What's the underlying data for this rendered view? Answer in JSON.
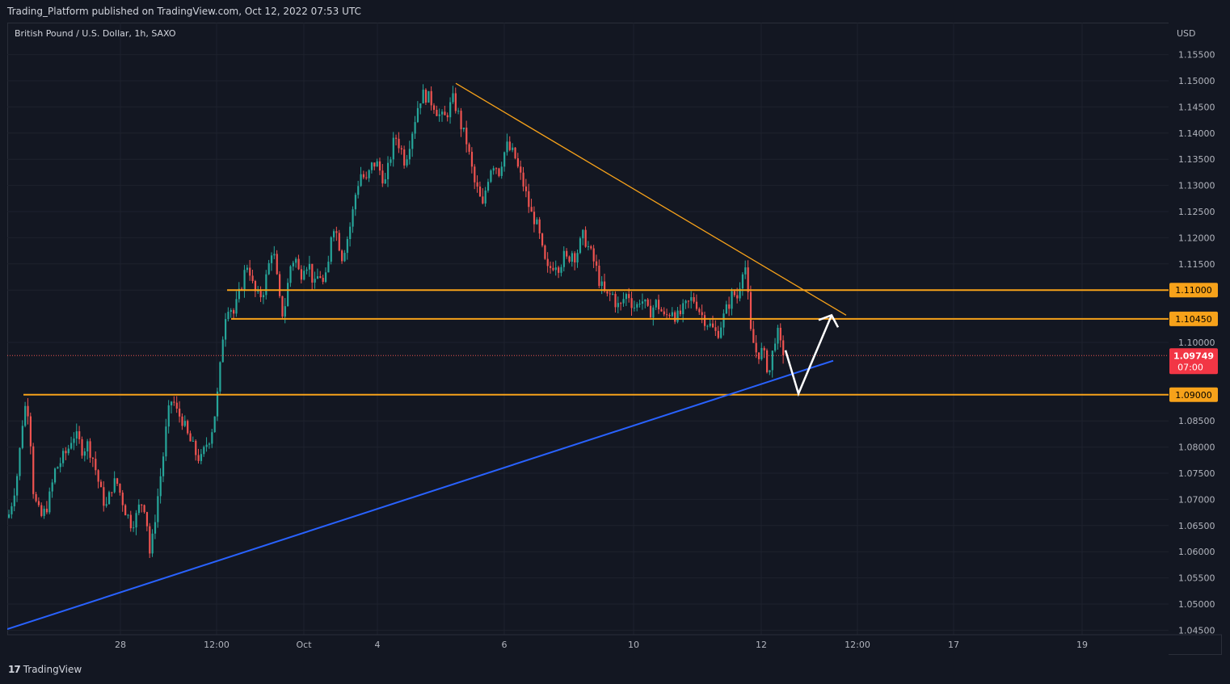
{
  "header": {
    "published": "Trading_Platform published on TradingView.com, Oct 12, 2022 07:53 UTC"
  },
  "footer": {
    "logo_mark": "17",
    "brand": "TradingView"
  },
  "chart_data": {
    "type": "candlestick",
    "title": "British Pound / U.S. Dollar, 1h, SAXO",
    "currency": "USD",
    "y_ticks": [
      "1.15500",
      "1.15000",
      "1.14500",
      "1.14000",
      "1.13500",
      "1.13000",
      "1.12500",
      "1.12000",
      "1.11500",
      "1.11000",
      "1.10000",
      "1.08500",
      "1.08000",
      "1.07500",
      "1.07000",
      "1.06500",
      "1.06000",
      "1.05500",
      "1.05000",
      "1.04500"
    ],
    "ylim": [
      1.043,
      1.159
    ],
    "x_ticks": [
      "28",
      "12:00",
      "Oct",
      "4",
      "6",
      "10",
      "12",
      "12:00",
      "17",
      "19"
    ],
    "price_path": [
      [
        0,
        1.0665
      ],
      [
        6,
        1.0705
      ],
      [
        12,
        1.0755
      ],
      [
        18,
        1.0852
      ],
      [
        23,
        1.0892
      ],
      [
        27,
        1.0835
      ],
      [
        31,
        1.072
      ],
      [
        36,
        1.068
      ],
      [
        42,
        1.0665
      ],
      [
        50,
        1.0695
      ],
      [
        58,
        1.0755
      ],
      [
        66,
        1.0775
      ],
      [
        74,
        1.0795
      ],
      [
        80,
        1.0825
      ],
      [
        86,
        1.0815
      ],
      [
        92,
        1.0795
      ],
      [
        98,
        1.0805
      ],
      [
        104,
        1.0785
      ],
      [
        110,
        1.0745
      ],
      [
        116,
        1.0705
      ],
      [
        122,
        1.0685
      ],
      [
        128,
        1.0725
      ],
      [
        134,
        1.0735
      ],
      [
        140,
        1.0705
      ],
      [
        146,
        1.0675
      ],
      [
        152,
        1.0655
      ],
      [
        158,
        1.0665
      ],
      [
        164,
        1.0695
      ],
      [
        170,
        1.0685
      ],
      [
        176,
        1.0585
      ],
      [
        180,
        1.0645
      ],
      [
        186,
        1.0715
      ],
      [
        192,
        1.0785
      ],
      [
        197,
        1.0855
      ],
      [
        203,
        1.0895
      ],
      [
        209,
        1.0865
      ],
      [
        215,
        1.0855
      ],
      [
        221,
        1.0825
      ],
      [
        227,
        1.0805
      ],
      [
        233,
        1.0785
      ],
      [
        239,
        1.0775
      ],
      [
        245,
        1.0805
      ],
      [
        251,
        1.0825
      ],
      [
        257,
        1.0875
      ],
      [
        261,
        1.0925
      ],
      [
        265,
        1.1005
      ],
      [
        269,
        1.1055
      ],
      [
        273,
        1.1075
      ],
      [
        279,
        1.1055
      ],
      [
        285,
        1.1085
      ],
      [
        291,
        1.1125
      ],
      [
        297,
        1.1155
      ],
      [
        303,
        1.1105
      ],
      [
        309,
        1.1085
      ],
      [
        315,
        1.1095
      ],
      [
        321,
        1.1135
      ],
      [
        327,
        1.1185
      ],
      [
        331,
        1.1145
      ],
      [
        335,
        1.1085
      ],
      [
        339,
        1.1055
      ],
      [
        343,
        1.1075
      ],
      [
        349,
        1.1145
      ],
      [
        355,
        1.1165
      ],
      [
        361,
        1.1125
      ],
      [
        367,
        1.1155
      ],
      [
        373,
        1.1145
      ],
      [
        379,
        1.1105
      ],
      [
        385,
        1.1135
      ],
      [
        391,
        1.1105
      ],
      [
        397,
        1.1155
      ],
      [
        401,
        1.1235
      ],
      [
        407,
        1.1205
      ],
      [
        413,
        1.1165
      ],
      [
        419,
        1.1195
      ],
      [
        425,
        1.1235
      ],
      [
        431,
        1.1295
      ],
      [
        437,
        1.1325
      ],
      [
        443,
        1.1305
      ],
      [
        449,
        1.1335
      ],
      [
        455,
        1.1345
      ],
      [
        461,
        1.1325
      ],
      [
        467,
        1.1305
      ],
      [
        473,
        1.1355
      ],
      [
        479,
        1.1395
      ],
      [
        485,
        1.1375
      ],
      [
        491,
        1.1345
      ],
      [
        497,
        1.1385
      ],
      [
        503,
        1.1425
      ],
      [
        509,
        1.1465
      ],
      [
        515,
        1.1475
      ],
      [
        521,
        1.1465
      ],
      [
        527,
        1.1455
      ],
      [
        533,
        1.1435
      ],
      [
        539,
        1.1425
      ],
      [
        545,
        1.1445
      ],
      [
        551,
        1.1465
      ],
      [
        557,
        1.1435
      ],
      [
        562,
        1.1405
      ],
      [
        567,
        1.1385
      ],
      [
        572,
        1.1345
      ],
      [
        577,
        1.1305
      ],
      [
        582,
        1.1285
      ],
      [
        587,
        1.1255
      ],
      [
        592,
        1.1305
      ],
      [
        597,
        1.1335
      ],
      [
        602,
        1.1345
      ],
      [
        607,
        1.1325
      ],
      [
        612,
        1.1355
      ],
      [
        617,
        1.1375
      ],
      [
        622,
        1.1365
      ],
      [
        627,
        1.1355
      ],
      [
        632,
        1.1325
      ],
      [
        637,
        1.1305
      ],
      [
        642,
        1.1275
      ],
      [
        647,
        1.1245
      ],
      [
        652,
        1.1235
      ],
      [
        657,
        1.1205
      ],
      [
        662,
        1.1165
      ],
      [
        667,
        1.1135
      ],
      [
        672,
        1.1145
      ],
      [
        677,
        1.1155
      ],
      [
        682,
        1.1145
      ],
      [
        687,
        1.1165
      ],
      [
        692,
        1.1155
      ],
      [
        697,
        1.1175
      ],
      [
        702,
        1.1165
      ],
      [
        707,
        1.1185
      ],
      [
        712,
        1.1205
      ],
      [
        717,
        1.1185
      ],
      [
        722,
        1.1165
      ],
      [
        727,
        1.1145
      ],
      [
        732,
        1.1115
      ],
      [
        737,
        1.1095
      ],
      [
        742,
        1.1085
      ],
      [
        747,
        1.1095
      ],
      [
        752,
        1.1075
      ],
      [
        757,
        1.1065
      ],
      [
        762,
        1.1085
      ],
      [
        767,
        1.1095
      ],
      [
        772,
        1.1075
      ],
      [
        777,
        1.1065
      ],
      [
        782,
        1.1085
      ],
      [
        787,
        1.1075
      ],
      [
        792,
        1.1055
      ],
      [
        797,
        1.1065
      ],
      [
        802,
        1.1075
      ],
      [
        807,
        1.1065
      ],
      [
        812,
        1.1045
      ],
      [
        817,
        1.1055
      ],
      [
        822,
        1.1065
      ],
      [
        827,
        1.1045
      ],
      [
        832,
        1.1055
      ],
      [
        837,
        1.1065
      ],
      [
        842,
        1.1075
      ],
      [
        847,
        1.1085
      ],
      [
        852,
        1.1075
      ],
      [
        857,
        1.1055
      ],
      [
        862,
        1.1045
      ],
      [
        867,
        1.1035
      ],
      [
        872,
        1.1025
      ],
      [
        877,
        1.1015
      ],
      [
        882,
        1.1035
      ],
      [
        887,
        1.1055
      ],
      [
        892,
        1.1075
      ],
      [
        897,
        1.1095
      ],
      [
        902,
        1.1085
      ],
      [
        907,
        1.1125
      ],
      [
        911,
        1.1165
      ],
      [
        915,
        1.1095
      ],
      [
        919,
        1.1015
      ],
      [
        923,
        1.0995
      ],
      [
        927,
        1.0975
      ],
      [
        931,
        1.0985
      ],
      [
        935,
        1.0975
      ],
      [
        939,
        1.0955
      ],
      [
        943,
        1.0945
      ],
      [
        947,
        1.0995
      ],
      [
        951,
        1.1025
      ],
      [
        955,
        1.0995
      ],
      [
        958,
        1.0985
      ],
      [
        962,
        1.0975
      ]
    ],
    "horizontal_levels": [
      {
        "label": "1.11000",
        "value": 1.11,
        "x_start": 272
      },
      {
        "label": "1.10450",
        "value": 1.1045,
        "x_start": 277
      },
      {
        "label": "1.09000",
        "value": 1.09,
        "x_start": 20
      }
    ],
    "last_price": {
      "label": "1.09749",
      "value": 1.09749,
      "countdown": "07:00"
    },
    "trendlines": [
      {
        "name": "descending",
        "color": "#f7a21a",
        "from": [
          555,
          1.1495
        ],
        "to": [
          1038,
          1.1052
        ]
      },
      {
        "name": "ascending",
        "color": "#2962ff",
        "from": [
          0,
          1.0452
        ],
        "to": [
          1022,
          1.0965
        ]
      }
    ],
    "projection_arrow": {
      "color": "#ffffff",
      "points": [
        [
          963,
          1.0985
        ],
        [
          979,
          1.0902
        ],
        [
          1020,
          1.1052
        ]
      ]
    },
    "colors": {
      "up": "#26a69a",
      "down": "#ef5350",
      "level": "#f7a21a",
      "background": "#131722",
      "grid": "#1e222d"
    }
  }
}
